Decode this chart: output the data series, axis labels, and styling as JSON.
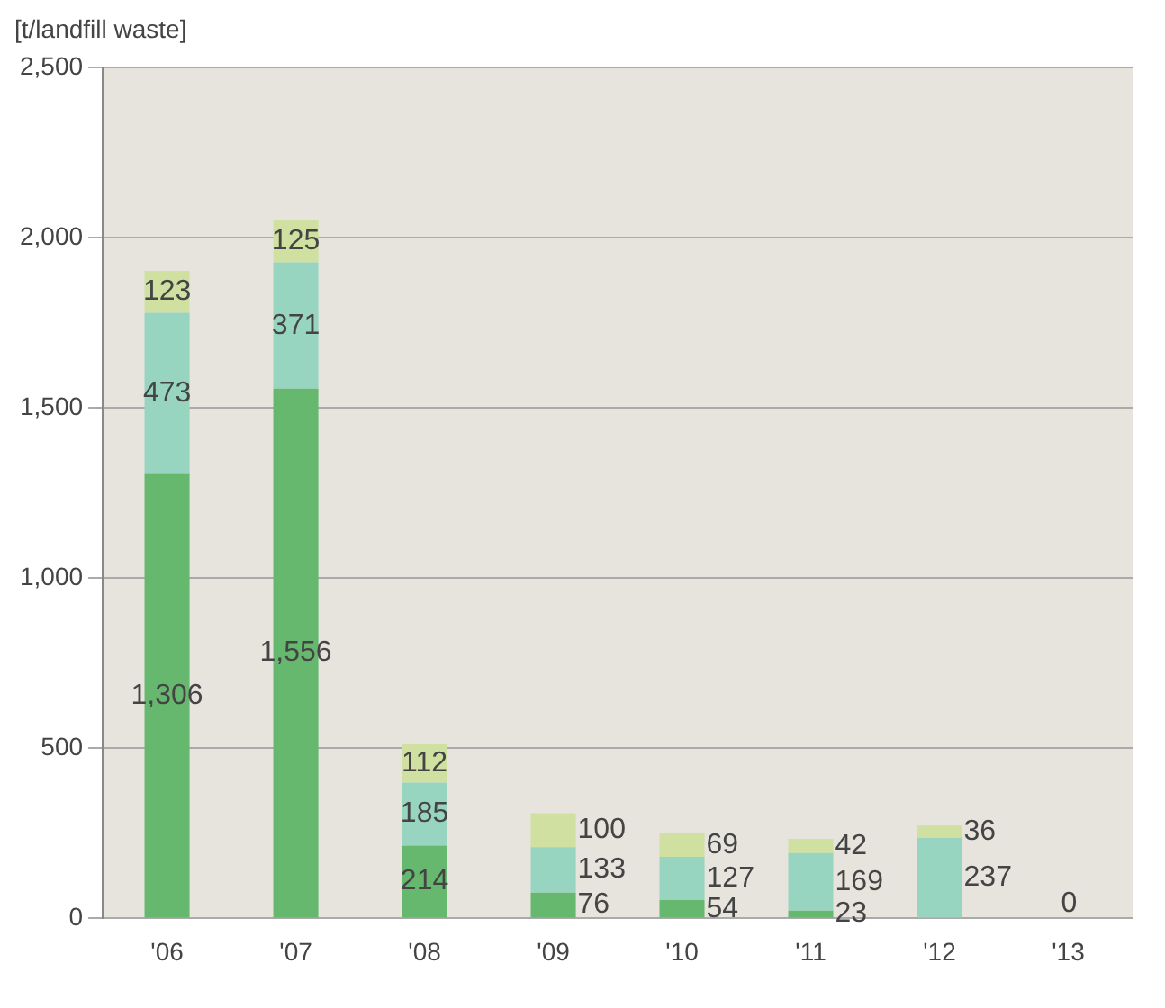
{
  "chart_data": {
    "type": "bar",
    "stacked": true,
    "ylabel": "[t/landfill waste]",
    "categories": [
      "'06",
      "'07",
      "'08",
      "'09",
      "'10",
      "'11",
      "'12",
      "'13"
    ],
    "series": [
      {
        "color": "#66b86e",
        "values": [
          1306,
          1556,
          214,
          76,
          54,
          23,
          null,
          0
        ],
        "value_labels": [
          "1,306",
          "1,556",
          "214",
          "76",
          "54",
          "23",
          null,
          "0"
        ]
      },
      {
        "color": "#98d5c0",
        "values": [
          473,
          371,
          185,
          133,
          127,
          169,
          237,
          null
        ],
        "value_labels": [
          "473",
          "371",
          "185",
          "133",
          "127",
          "169",
          "237",
          null
        ]
      },
      {
        "color": "#cfe0a0",
        "values": [
          123,
          125,
          112,
          100,
          69,
          42,
          36,
          null
        ],
        "value_labels": [
          "123",
          "125",
          "112",
          "100",
          "69",
          "42",
          "36",
          null
        ]
      }
    ],
    "ylim": [
      0,
      2500
    ],
    "yticks": [
      0,
      {
        "value": 500,
        "label": "500"
      },
      {
        "value": 1000,
        "label": "1,000"
      },
      {
        "value": 1500,
        "label": "1,500"
      },
      {
        "value": 2000,
        "label": "2,000"
      },
      {
        "value": 2500,
        "label": "2,500"
      }
    ],
    "grid": "y"
  }
}
